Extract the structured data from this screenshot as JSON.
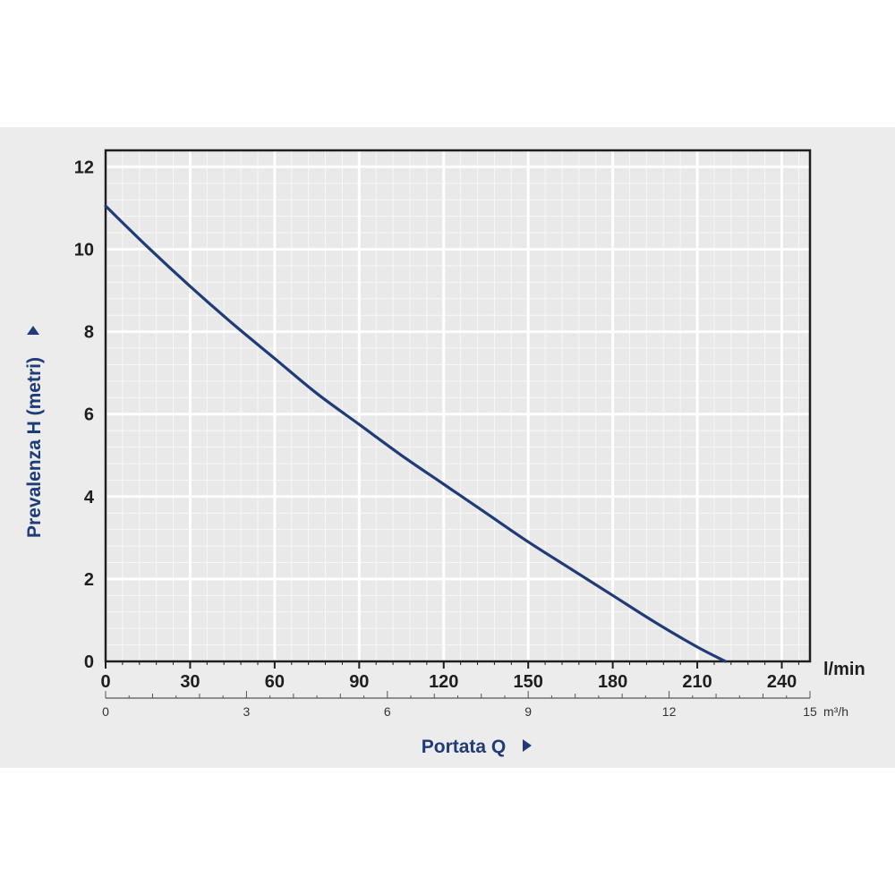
{
  "colors": {
    "curve": "#1f3c78",
    "axis_title": "#1f3c78",
    "frame": "#1e1e1e",
    "grid_major": "#ffffff",
    "grid_minor": "#f7f7f7",
    "background": "#ececec"
  },
  "chart_data": {
    "type": "line",
    "xlabel": "Portata Q",
    "ylabel": "Prevalenza H (metri)",
    "x_unit": "l/min",
    "x2_unit": "m³/h",
    "xlim": [
      0,
      250
    ],
    "ylim": [
      0,
      12.4
    ],
    "x_ticks": [
      "0",
      "30",
      "60",
      "90",
      "120",
      "150",
      "180",
      "210",
      "240"
    ],
    "x_tick_values": [
      0,
      30,
      60,
      90,
      120,
      150,
      180,
      210,
      240
    ],
    "x2_ticks": [
      "0",
      "3",
      "6",
      "9",
      "12",
      "15"
    ],
    "x2_tick_values": [
      0,
      3,
      6,
      9,
      12,
      15
    ],
    "x2_lim": [
      0,
      15
    ],
    "y_ticks": [
      "0",
      "2",
      "4",
      "6",
      "8",
      "10",
      "12"
    ],
    "y_tick_values": [
      0,
      2,
      4,
      6,
      8,
      10,
      12
    ],
    "grid": true,
    "series": [
      {
        "x": [
          0,
          15,
          30,
          45,
          60,
          75,
          90,
          105,
          120,
          135,
          150,
          165,
          180,
          195,
          210,
          220
        ],
        "y": [
          11.05,
          10.05,
          9.1,
          8.2,
          7.35,
          6.5,
          5.75,
          5.0,
          4.3,
          3.6,
          2.9,
          2.25,
          1.6,
          0.95,
          0.35,
          0
        ]
      }
    ]
  }
}
